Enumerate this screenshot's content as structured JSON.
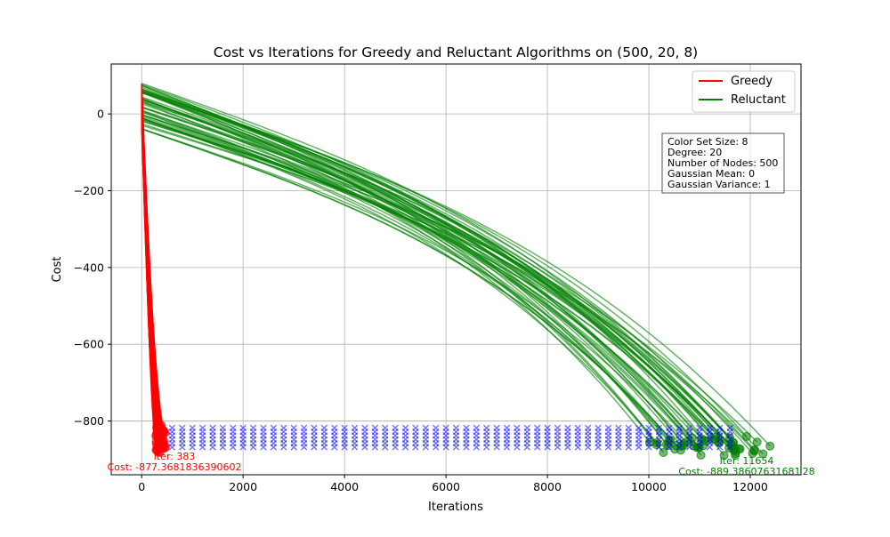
{
  "chart_data": {
    "type": "line",
    "title": "Cost vs Iterations for Greedy and Reluctant Algorithms on (500, 20, 8)",
    "xlabel": "Iterations",
    "ylabel": "Cost",
    "xlim": [
      -600,
      13000
    ],
    "ylim": [
      -940,
      130
    ],
    "x_ticks": [
      0,
      2000,
      4000,
      6000,
      8000,
      10000,
      12000
    ],
    "x_tick_labels": [
      "0",
      "2000",
      "4000",
      "6000",
      "8000",
      "10000",
      "12000"
    ],
    "y_ticks": [
      0,
      -200,
      -400,
      -600,
      -800
    ],
    "y_tick_labels": [
      "0",
      "−200",
      "−400",
      "−600",
      "−800"
    ],
    "grid": true,
    "legend_position": "top-right",
    "legend": [
      {
        "label": "Greedy",
        "color": "#ff0000"
      },
      {
        "label": "Reluctant",
        "color": "#008000"
      }
    ],
    "info_box_lines": [
      "Color Set Size: 8",
      "Degree: 20",
      "Number of Nodes: 500",
      "Gaussian Mean: 0",
      "Gaussian Variance: 1"
    ],
    "series": [
      {
        "name": "Greedy",
        "color": "#ff0000",
        "runs": 50,
        "start_cost_range": [
          -40,
          80
        ],
        "end_iteration_range": [
          280,
          470
        ],
        "end_cost_range": [
          -885,
          -810
        ],
        "marker": "o"
      },
      {
        "name": "Reluctant",
        "color": "#008000",
        "runs": 50,
        "start_cost_range": [
          -40,
          80
        ],
        "end_iteration_range": [
          9600,
          12400
        ],
        "end_cost_range": [
          -890,
          -840
        ],
        "marker": "o"
      }
    ],
    "blue_markers": {
      "color": "#0000ff",
      "marker": "x",
      "x_range": [
        400,
        11700
      ],
      "x_step": 200,
      "cost_rows": [
        -818,
        -828,
        -838,
        -848,
        -858,
        -868
      ]
    },
    "annotations": [
      {
        "series": "Greedy",
        "color": "#ff0000",
        "x": 383,
        "y": -877.3681836390602,
        "lines": [
          "Iter: 383",
          "Cost: -877.3681836390602"
        ]
      },
      {
        "series": "Reluctant",
        "color": "#008000",
        "x": 11654,
        "y": -889.3860763168128,
        "lines": [
          "Iter: 11654",
          "Cost: -889.38607631681 28"
        ]
      }
    ]
  },
  "colors": {
    "greedy": "#ff0000",
    "reluctant": "#008000",
    "markers": "#0000ff",
    "grid": "#b0b0b0"
  }
}
